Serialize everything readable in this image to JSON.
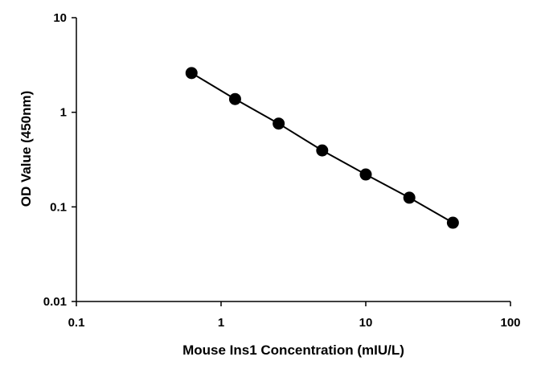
{
  "chart_data": {
    "type": "scatter",
    "title": "",
    "xlabel": "Mouse Ins1 Concentration (mIU/L)",
    "ylabel": "OD Value (450nm)",
    "x_scale": "log",
    "y_scale": "log",
    "xlim": [
      0.1,
      100
    ],
    "ylim": [
      0.01,
      10
    ],
    "x_ticks": [
      0.1,
      1,
      10,
      100
    ],
    "x_tick_labels": [
      "0.1",
      "1",
      "10",
      "100"
    ],
    "y_ticks": [
      0.01,
      0.1,
      1,
      10
    ],
    "y_tick_labels": [
      "0.01",
      "0.1",
      "1",
      "10"
    ],
    "grid": false,
    "legend": "none",
    "series": [
      {
        "x": [
          0.625,
          1.25,
          2.5,
          5,
          10,
          20,
          40
        ],
        "y": [
          2.6,
          1.38,
          0.76,
          0.395,
          0.22,
          0.125,
          0.068
        ],
        "line": true,
        "marker": "circle",
        "color": "#000000"
      }
    ]
  }
}
